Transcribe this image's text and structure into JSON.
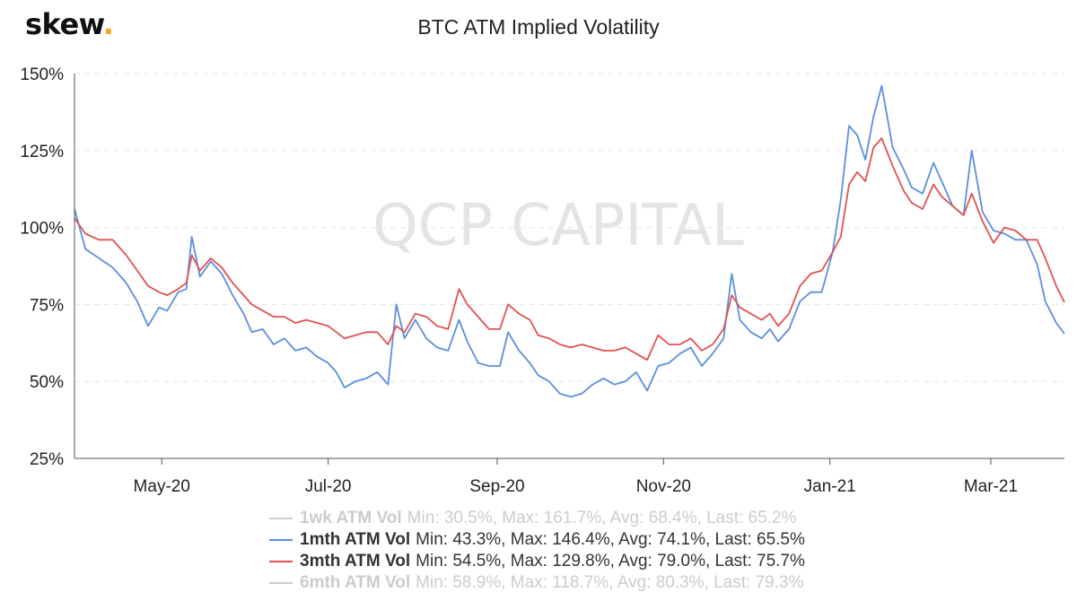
{
  "brand": {
    "logo_text": "skew",
    "logo_dot": ".",
    "dot_color": "#f5a623"
  },
  "watermark": "QCP CAPITAL",
  "chart_data": {
    "type": "line",
    "title": "BTC ATM Implied Volatility",
    "x_range": [
      "2020-03-30",
      "2021-03-28"
    ],
    "y_range": [
      25,
      150
    ],
    "y_unit": "%",
    "y_ticks": [
      "25%",
      "50%",
      "75%",
      "100%",
      "125%",
      "150%"
    ],
    "y_tick_values": [
      25,
      50,
      75,
      100,
      125,
      150
    ],
    "x_ticks": [
      "May-20",
      "Jul-20",
      "Sep-20",
      "Nov-20",
      "Jan-21",
      "Mar-21"
    ],
    "x_tick_dates": [
      "2020-05-01",
      "2020-07-01",
      "2020-09-01",
      "2020-11-01",
      "2021-01-01",
      "2021-03-01"
    ],
    "grid": "horizontal dashed",
    "legend_placement": "bottom",
    "series": [
      {
        "name": "1wk ATM Vol",
        "color": "#cccccc",
        "visible": false,
        "stats": "Min: 30.5%, Max: 161.7%, Avg: 68.4%, Last: 65.2%",
        "points": []
      },
      {
        "name": "1mth ATM Vol",
        "color": "#5b8fdc",
        "visible": true,
        "stats": "Min: 43.3%, Max: 146.4%, Avg: 74.1%, Last: 65.5%",
        "points": [
          [
            "2020-03-30",
            106
          ],
          [
            "2020-04-03",
            93
          ],
          [
            "2020-04-08",
            90
          ],
          [
            "2020-04-13",
            87
          ],
          [
            "2020-04-18",
            82
          ],
          [
            "2020-04-22",
            76
          ],
          [
            "2020-04-26",
            68
          ],
          [
            "2020-04-30",
            74
          ],
          [
            "2020-05-03",
            73
          ],
          [
            "2020-05-07",
            79
          ],
          [
            "2020-05-10",
            80
          ],
          [
            "2020-05-12",
            97
          ],
          [
            "2020-05-15",
            84
          ],
          [
            "2020-05-19",
            89
          ],
          [
            "2020-05-23",
            85
          ],
          [
            "2020-05-27",
            78
          ],
          [
            "2020-05-31",
            72
          ],
          [
            "2020-06-03",
            66
          ],
          [
            "2020-06-07",
            67
          ],
          [
            "2020-06-11",
            62
          ],
          [
            "2020-06-15",
            64
          ],
          [
            "2020-06-19",
            60
          ],
          [
            "2020-06-23",
            61
          ],
          [
            "2020-06-27",
            58
          ],
          [
            "2020-07-01",
            56
          ],
          [
            "2020-07-04",
            53
          ],
          [
            "2020-07-07",
            48
          ],
          [
            "2020-07-11",
            50
          ],
          [
            "2020-07-15",
            51
          ],
          [
            "2020-07-19",
            53
          ],
          [
            "2020-07-23",
            49
          ],
          [
            "2020-07-26",
            75
          ],
          [
            "2020-07-29",
            64
          ],
          [
            "2020-08-02",
            70
          ],
          [
            "2020-08-06",
            64
          ],
          [
            "2020-08-10",
            61
          ],
          [
            "2020-08-14",
            60
          ],
          [
            "2020-08-18",
            70
          ],
          [
            "2020-08-21",
            63
          ],
          [
            "2020-08-25",
            56
          ],
          [
            "2020-08-29",
            55
          ],
          [
            "2020-09-02",
            55
          ],
          [
            "2020-09-05",
            66
          ],
          [
            "2020-09-09",
            60
          ],
          [
            "2020-09-13",
            56
          ],
          [
            "2020-09-16",
            52
          ],
          [
            "2020-09-20",
            50
          ],
          [
            "2020-09-24",
            46
          ],
          [
            "2020-09-28",
            45
          ],
          [
            "2020-10-02",
            46
          ],
          [
            "2020-10-06",
            49
          ],
          [
            "2020-10-10",
            51
          ],
          [
            "2020-10-14",
            49
          ],
          [
            "2020-10-18",
            50
          ],
          [
            "2020-10-22",
            53
          ],
          [
            "2020-10-26",
            47
          ],
          [
            "2020-10-30",
            55
          ],
          [
            "2020-11-03",
            56
          ],
          [
            "2020-11-07",
            59
          ],
          [
            "2020-11-11",
            61
          ],
          [
            "2020-11-15",
            55
          ],
          [
            "2020-11-19",
            59
          ],
          [
            "2020-11-23",
            64
          ],
          [
            "2020-11-26",
            85
          ],
          [
            "2020-11-29",
            70
          ],
          [
            "2020-12-03",
            66
          ],
          [
            "2020-12-07",
            64
          ],
          [
            "2020-12-10",
            67
          ],
          [
            "2020-12-13",
            63
          ],
          [
            "2020-12-17",
            67
          ],
          [
            "2020-12-21",
            76
          ],
          [
            "2020-12-25",
            79
          ],
          [
            "2020-12-29",
            79
          ],
          [
            "2021-01-02",
            92
          ],
          [
            "2021-01-05",
            109
          ],
          [
            "2021-01-08",
            133
          ],
          [
            "2021-01-11",
            130
          ],
          [
            "2021-01-14",
            122
          ],
          [
            "2021-01-17",
            136
          ],
          [
            "2021-01-20",
            146
          ],
          [
            "2021-01-24",
            126
          ],
          [
            "2021-01-28",
            119
          ],
          [
            "2021-01-31",
            113
          ],
          [
            "2021-02-04",
            111
          ],
          [
            "2021-02-08",
            121
          ],
          [
            "2021-02-11",
            115
          ],
          [
            "2021-02-15",
            107
          ],
          [
            "2021-02-19",
            104
          ],
          [
            "2021-02-22",
            125
          ],
          [
            "2021-02-26",
            105
          ],
          [
            "2021-03-02",
            99
          ],
          [
            "2021-03-06",
            98
          ],
          [
            "2021-03-10",
            96
          ],
          [
            "2021-03-14",
            96
          ],
          [
            "2021-03-18",
            88
          ],
          [
            "2021-03-21",
            76
          ],
          [
            "2021-03-25",
            69
          ],
          [
            "2021-03-28",
            65.5
          ]
        ]
      },
      {
        "name": "3mth ATM Vol",
        "color": "#e15252",
        "visible": true,
        "stats": "Min: 54.5%, Max: 129.8%, Avg: 79.0%, Last: 75.7%",
        "points": [
          [
            "2020-03-30",
            103
          ],
          [
            "2020-04-03",
            98
          ],
          [
            "2020-04-08",
            96
          ],
          [
            "2020-04-13",
            96
          ],
          [
            "2020-04-18",
            91
          ],
          [
            "2020-04-22",
            86
          ],
          [
            "2020-04-26",
            81
          ],
          [
            "2020-04-30",
            79
          ],
          [
            "2020-05-03",
            78
          ],
          [
            "2020-05-07",
            80
          ],
          [
            "2020-05-10",
            82
          ],
          [
            "2020-05-12",
            91
          ],
          [
            "2020-05-15",
            86
          ],
          [
            "2020-05-19",
            90
          ],
          [
            "2020-05-23",
            87
          ],
          [
            "2020-05-27",
            82
          ],
          [
            "2020-05-31",
            78
          ],
          [
            "2020-06-03",
            75
          ],
          [
            "2020-06-07",
            73
          ],
          [
            "2020-06-11",
            71
          ],
          [
            "2020-06-15",
            71
          ],
          [
            "2020-06-19",
            69
          ],
          [
            "2020-06-23",
            70
          ],
          [
            "2020-06-27",
            69
          ],
          [
            "2020-07-01",
            68
          ],
          [
            "2020-07-04",
            66
          ],
          [
            "2020-07-07",
            64
          ],
          [
            "2020-07-11",
            65
          ],
          [
            "2020-07-15",
            66
          ],
          [
            "2020-07-19",
            66
          ],
          [
            "2020-07-23",
            62
          ],
          [
            "2020-07-26",
            68
          ],
          [
            "2020-07-29",
            66
          ],
          [
            "2020-08-02",
            72
          ],
          [
            "2020-08-06",
            71
          ],
          [
            "2020-08-10",
            68
          ],
          [
            "2020-08-14",
            67
          ],
          [
            "2020-08-18",
            80
          ],
          [
            "2020-08-21",
            75
          ],
          [
            "2020-08-25",
            71
          ],
          [
            "2020-08-29",
            67
          ],
          [
            "2020-09-02",
            67
          ],
          [
            "2020-09-05",
            75
          ],
          [
            "2020-09-09",
            72
          ],
          [
            "2020-09-13",
            70
          ],
          [
            "2020-09-16",
            65
          ],
          [
            "2020-09-20",
            64
          ],
          [
            "2020-09-24",
            62
          ],
          [
            "2020-09-28",
            61
          ],
          [
            "2020-10-02",
            62
          ],
          [
            "2020-10-06",
            61
          ],
          [
            "2020-10-10",
            60
          ],
          [
            "2020-10-14",
            60
          ],
          [
            "2020-10-18",
            61
          ],
          [
            "2020-10-22",
            59
          ],
          [
            "2020-10-26",
            57
          ],
          [
            "2020-10-30",
            65
          ],
          [
            "2020-11-03",
            62
          ],
          [
            "2020-11-07",
            62
          ],
          [
            "2020-11-11",
            64
          ],
          [
            "2020-11-15",
            60
          ],
          [
            "2020-11-19",
            62
          ],
          [
            "2020-11-23",
            67
          ],
          [
            "2020-11-26",
            78
          ],
          [
            "2020-11-29",
            74
          ],
          [
            "2020-12-03",
            72
          ],
          [
            "2020-12-07",
            70
          ],
          [
            "2020-12-10",
            72
          ],
          [
            "2020-12-13",
            68
          ],
          [
            "2020-12-17",
            72
          ],
          [
            "2020-12-21",
            81
          ],
          [
            "2020-12-25",
            85
          ],
          [
            "2020-12-29",
            86
          ],
          [
            "2021-01-02",
            92
          ],
          [
            "2021-01-05",
            97
          ],
          [
            "2021-01-08",
            114
          ],
          [
            "2021-01-11",
            118
          ],
          [
            "2021-01-14",
            115
          ],
          [
            "2021-01-17",
            126
          ],
          [
            "2021-01-20",
            129
          ],
          [
            "2021-01-24",
            120
          ],
          [
            "2021-01-28",
            112
          ],
          [
            "2021-01-31",
            108
          ],
          [
            "2021-02-04",
            106
          ],
          [
            "2021-02-08",
            114
          ],
          [
            "2021-02-11",
            110
          ],
          [
            "2021-02-15",
            107
          ],
          [
            "2021-02-19",
            104
          ],
          [
            "2021-02-22",
            111
          ],
          [
            "2021-02-26",
            102
          ],
          [
            "2021-03-02",
            95
          ],
          [
            "2021-03-06",
            100
          ],
          [
            "2021-03-10",
            99
          ],
          [
            "2021-03-14",
            96
          ],
          [
            "2021-03-18",
            96
          ],
          [
            "2021-03-21",
            90
          ],
          [
            "2021-03-25",
            81
          ],
          [
            "2021-03-28",
            75.7
          ]
        ]
      },
      {
        "name": "6mth ATM Vol",
        "color": "#cccccc",
        "visible": false,
        "stats": "Min: 58.9%, Max: 118.7%, Avg: 80.3%, Last: 79.3%",
        "points": []
      }
    ]
  }
}
